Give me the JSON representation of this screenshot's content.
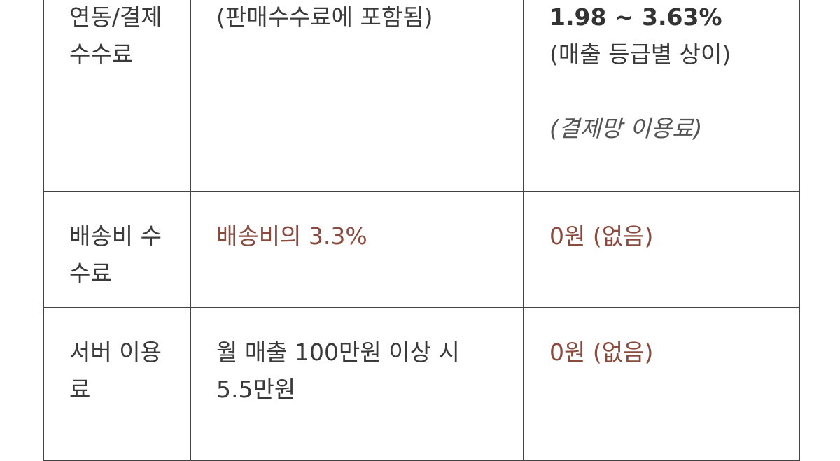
{
  "table": {
    "rows": [
      {
        "label": "연동/결제수수료",
        "col2": "(판매수수료에 포함됨)",
        "col3_main": "1.98 ~ 3.63%",
        "col3_sub": "(매출 등급별 상이)",
        "col3_note": "(결제망 이용료)"
      },
      {
        "label": "배송비 수수료",
        "col2": "배송비의 3.3%",
        "col3_main": "0원 (없음)"
      },
      {
        "label": "서버 이용료",
        "col2": "월 매출 100만원 이상 시 5.5만원",
        "col3_main": "0원 (없음)"
      }
    ]
  },
  "colors": {
    "accent": "#8a4b3e",
    "text": "#3a3a3a",
    "border": "#444444"
  }
}
